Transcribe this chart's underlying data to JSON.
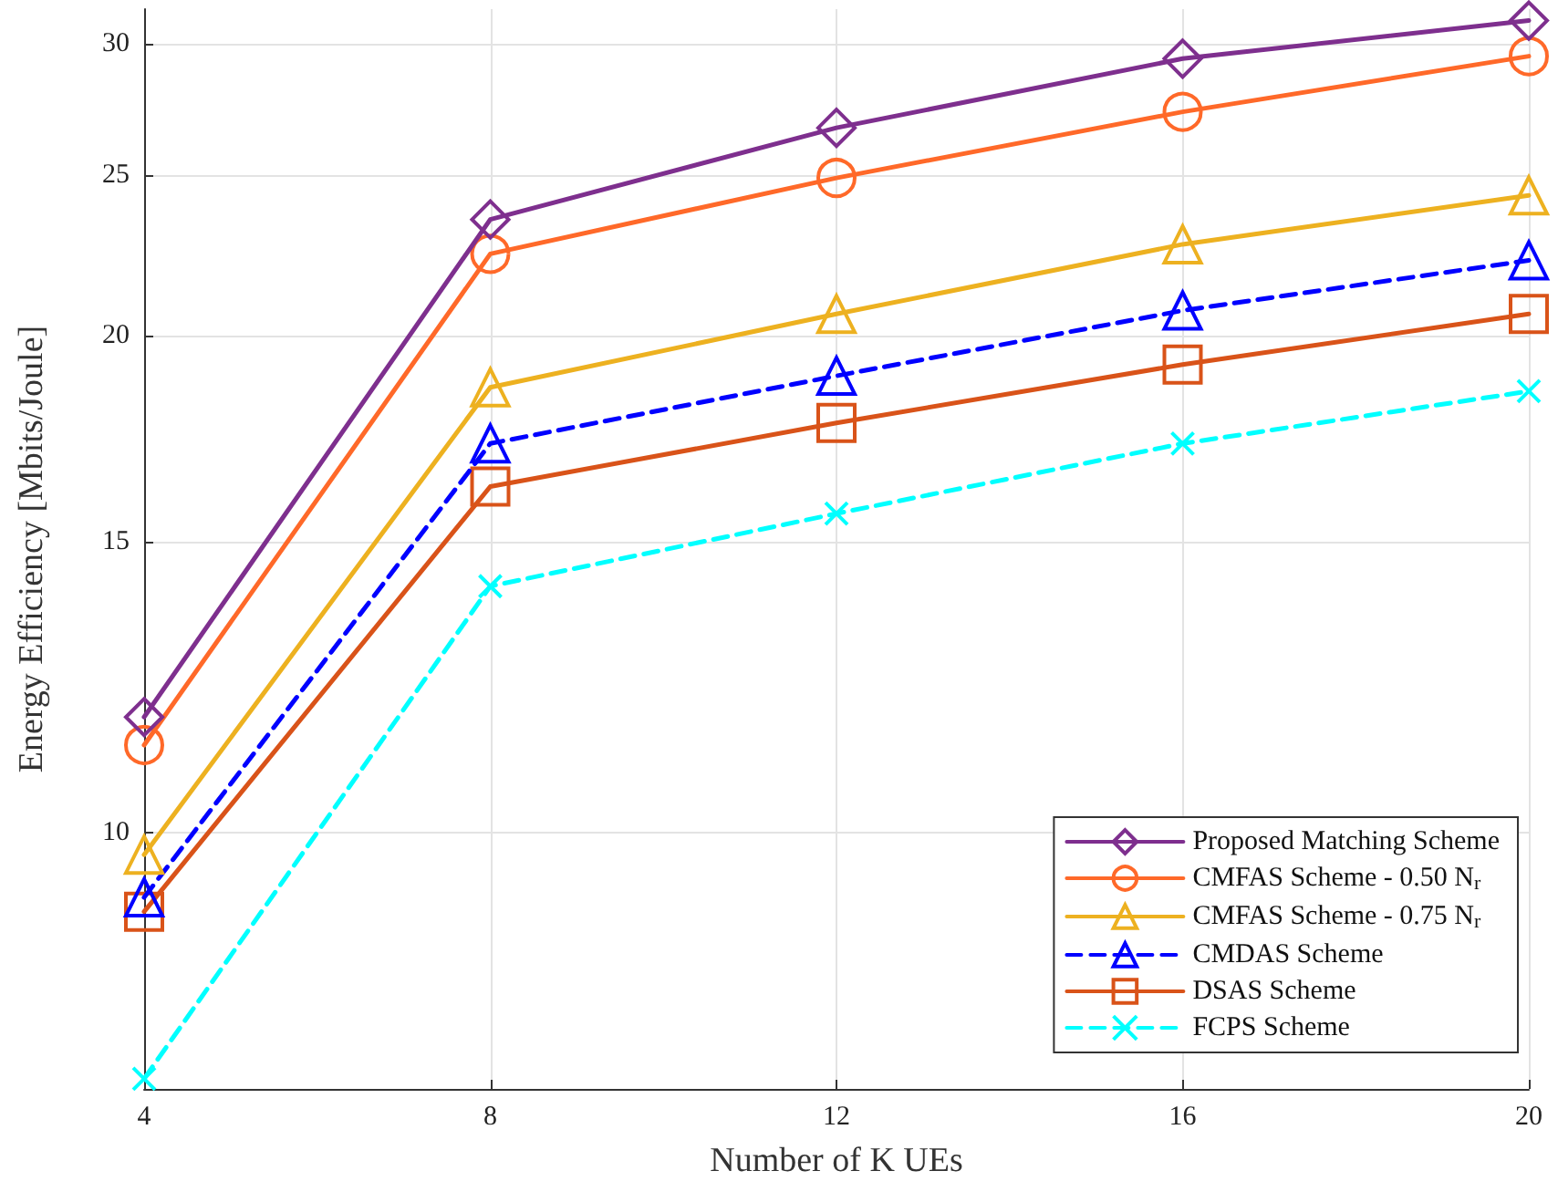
{
  "chart_data": {
    "type": "line",
    "xlabel": "Number of K UEs",
    "ylabel": "Energy Efficiency [Mbits/Joule]",
    "x": [
      4,
      8,
      12,
      16,
      20
    ],
    "xlim": [
      4,
      20
    ],
    "xticks": [
      4,
      8,
      12,
      16,
      20
    ],
    "ylim": [
      7,
      31.5
    ],
    "yticks": [
      10,
      15,
      20,
      25,
      30
    ],
    "log": "y",
    "grid": true,
    "legend": "bottom right",
    "series": [
      {
        "name": "Proposed Matching Scheme",
        "color": "#7e2f8e",
        "marker": "diamond",
        "line_style": "solid",
        "values": [
          11.75,
          23.5,
          26.7,
          29.4,
          31.0
        ]
      },
      {
        "name": "CMFAS Scheme - 0.50 N$_{r}$",
        "color": "#ff6929",
        "marker": "circle",
        "line_style": "solid",
        "values": [
          11.3,
          22.4,
          24.9,
          27.3,
          29.5
        ]
      },
      {
        "name": "CMFAS Scheme - 0.75 N$_{r}$",
        "color": "#edb120",
        "marker": "triangle",
        "line_style": "solid",
        "values": [
          9.7,
          18.6,
          20.6,
          22.7,
          24.3
        ]
      },
      {
        "name": "CMDAS Scheme",
        "color": "#0000ff",
        "marker": "triangle",
        "line_style": "dashed",
        "values": [
          9.14,
          17.2,
          18.9,
          20.7,
          22.2
        ]
      },
      {
        "name": "DSAS Scheme",
        "color": "#d95319",
        "marker": "square",
        "line_style": "solid",
        "values": [
          8.96,
          16.2,
          17.7,
          19.2,
          20.6
        ]
      },
      {
        "name": "FCPS Scheme",
        "color": "#00ffff",
        "marker": "cross",
        "line_style": "dashed",
        "values": [
          7.1,
          14.1,
          15.6,
          17.2,
          18.5
        ]
      }
    ]
  }
}
